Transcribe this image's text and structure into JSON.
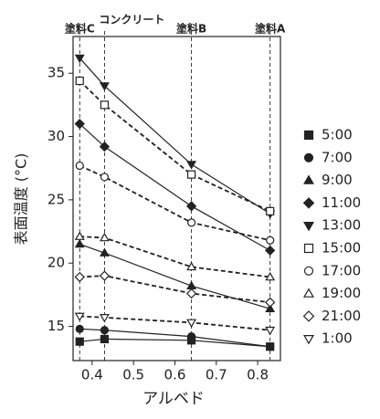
{
  "chart_data": {
    "type": "line",
    "x_label": "アルベド",
    "y_label": "表面温度 (°C)",
    "x": [
      0.37,
      0.43,
      0.64,
      0.83
    ],
    "xlim": [
      0.354,
      0.855
    ],
    "xticks": [
      0.4,
      0.5,
      0.6,
      0.7,
      0.8
    ],
    "ylim": [
      12.3,
      37.9
    ],
    "yticks": [
      15,
      20,
      25,
      30,
      35
    ],
    "grid": false,
    "color": "#222",
    "legend": "right",
    "reference_lines": [
      {
        "x": 0.37,
        "label": "塗料C"
      },
      {
        "x": 0.43,
        "label": "コンクリート"
      },
      {
        "x": 0.64,
        "label": "塗料B"
      },
      {
        "x": 0.83,
        "label": "塗料A"
      }
    ],
    "series": [
      {
        "name": "5:00",
        "marker": "square",
        "filled": true,
        "line": "solid",
        "values": [
          13.8,
          14.0,
          13.9,
          13.4
        ]
      },
      {
        "name": "7:00",
        "marker": "circle",
        "filled": true,
        "line": "solid",
        "values": [
          14.8,
          14.7,
          14.2,
          13.4
        ]
      },
      {
        "name": "9:00",
        "marker": "triangle-up",
        "filled": true,
        "line": "solid",
        "values": [
          21.5,
          20.8,
          18.2,
          16.4
        ]
      },
      {
        "name": "11:00",
        "marker": "diamond",
        "filled": true,
        "line": "solid",
        "values": [
          31.0,
          29.2,
          24.5,
          21.0
        ]
      },
      {
        "name": "13:00",
        "marker": "triangle-down",
        "filled": true,
        "line": "solid",
        "values": [
          36.2,
          34.0,
          27.8,
          23.9
        ]
      },
      {
        "name": "15:00",
        "marker": "square",
        "filled": false,
        "line": "dashed",
        "values": [
          34.4,
          32.5,
          27.0,
          24.1
        ]
      },
      {
        "name": "17:00",
        "marker": "circle",
        "filled": false,
        "line": "dashed",
        "values": [
          27.7,
          26.8,
          23.2,
          21.8
        ]
      },
      {
        "name": "19:00",
        "marker": "triangle-up",
        "filled": false,
        "line": "dashed",
        "values": [
          22.1,
          22.0,
          19.7,
          18.9
        ]
      },
      {
        "name": "21:00",
        "marker": "diamond",
        "filled": false,
        "line": "dashed",
        "values": [
          18.9,
          19.0,
          17.6,
          16.9
        ]
      },
      {
        "name": "1:00",
        "marker": "triangle-down",
        "filled": false,
        "line": "dashed",
        "values": [
          15.8,
          15.7,
          15.3,
          14.7
        ]
      }
    ]
  }
}
